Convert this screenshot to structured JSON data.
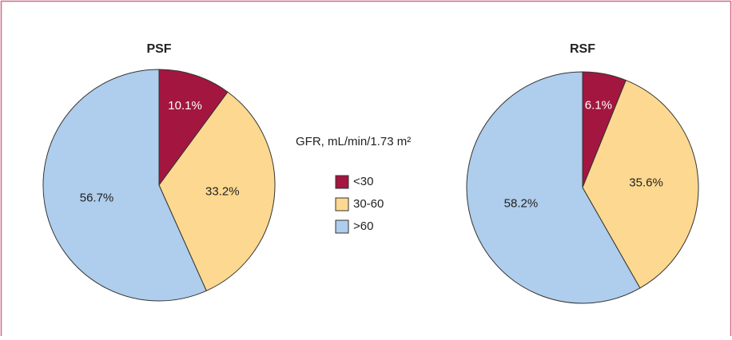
{
  "legend": {
    "title": "GFR, mL/min/1.73 m²",
    "items": [
      {
        "name": "<30",
        "color": "#a3163f"
      },
      {
        "name": "30-60",
        "color": "#fdd890"
      },
      {
        "name": ">60",
        "color": "#afcdec"
      }
    ]
  },
  "chart_data": [
    {
      "type": "pie",
      "title": "PSF",
      "values": [
        10.1,
        33.2,
        56.7
      ],
      "value_labels": [
        "10.1%",
        "33.2%",
        "56.7%"
      ]
    },
    {
      "type": "pie",
      "title": "RSF",
      "values": [
        6.1,
        35.6,
        58.2
      ],
      "value_labels": [
        "6.1%",
        "35.6%",
        "58.2%"
      ]
    }
  ]
}
